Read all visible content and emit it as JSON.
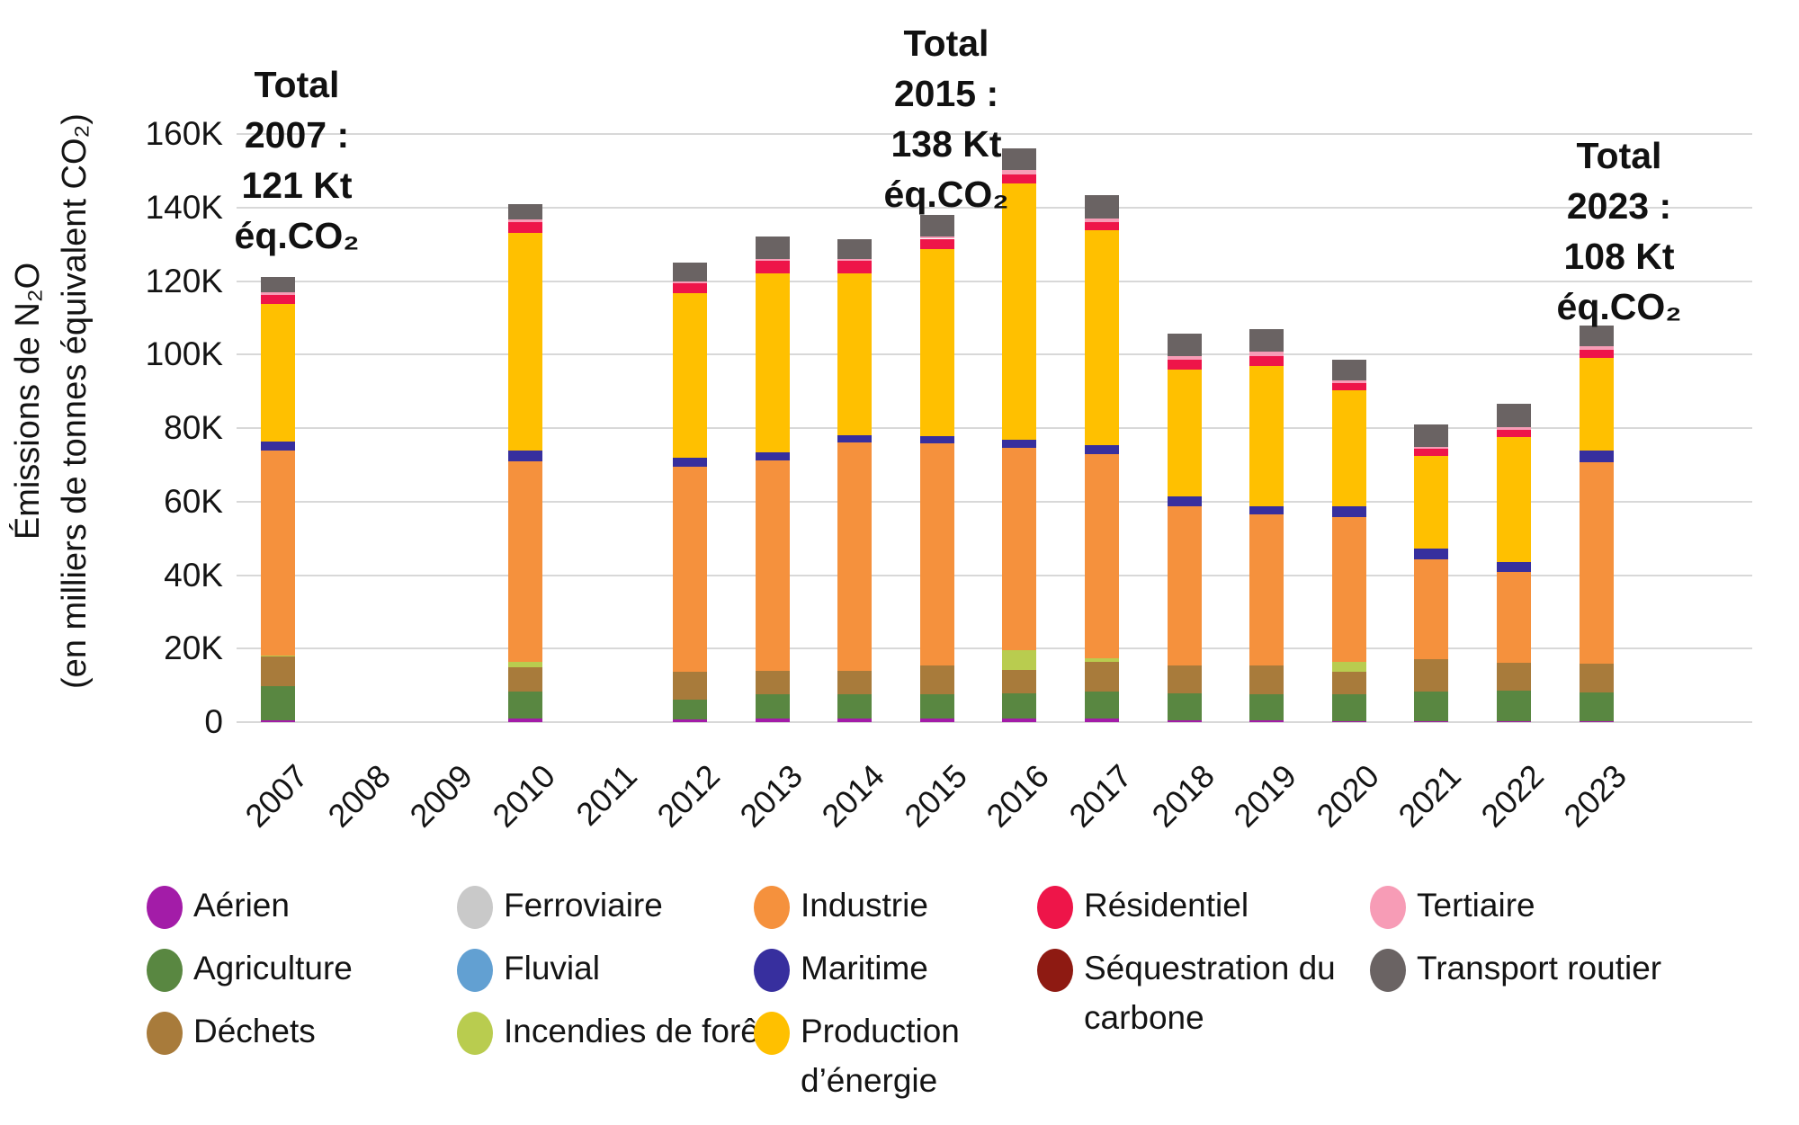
{
  "chart_data": {
    "type": "bar",
    "stacked": true,
    "grid": "horizontal",
    "y_axis_title_line1": "Émissions de N₂O",
    "y_axis_title_line2": "(en milliers de tonnes équivalent CO₂)",
    "y_unit": "K (milliers de tonnes éq. CO₂)",
    "ylim": [
      0,
      160
    ],
    "y_ticks": [
      {
        "value": 0,
        "label": "0"
      },
      {
        "value": 20,
        "label": "20K"
      },
      {
        "value": 40,
        "label": "40K"
      },
      {
        "value": 60,
        "label": "60K"
      },
      {
        "value": 80,
        "label": "80K"
      },
      {
        "value": 100,
        "label": "100K"
      },
      {
        "value": 120,
        "label": "120K"
      },
      {
        "value": 140,
        "label": "140K"
      },
      {
        "value": 160,
        "label": "160K"
      }
    ],
    "categories": [
      "2007",
      "2008",
      "2009",
      "2010",
      "2011",
      "2012",
      "2013",
      "2014",
      "2015",
      "2016",
      "2017",
      "2018",
      "2019",
      "2020",
      "2021",
      "2022",
      "2023"
    ],
    "series": [
      {
        "name": "Aérien",
        "color": "#A31CA8",
        "values": [
          0.5,
          null,
          null,
          1.0,
          null,
          0.8,
          0.9,
          0.9,
          1.1,
          0.9,
          0.9,
          0.5,
          0.6,
          0.3,
          0.3,
          0.2,
          0.2
        ]
      },
      {
        "name": "Agriculture",
        "color": "#598741",
        "values": [
          9.3,
          null,
          null,
          7.2,
          null,
          5.4,
          6.8,
          6.8,
          6.6,
          7.0,
          7.3,
          7.4,
          7.1,
          7.4,
          8.1,
          8.3,
          7.9
        ]
      },
      {
        "name": "Déchets",
        "color": "#A87B3B",
        "values": [
          8.0,
          null,
          null,
          6.7,
          null,
          7.6,
          6.3,
          6.3,
          7.6,
          6.3,
          8.3,
          7.4,
          7.6,
          5.9,
          8.8,
          7.6,
          7.7
        ]
      },
      {
        "name": "Ferroviaire",
        "color": "#C9C9C9",
        "values": [
          0,
          null,
          null,
          0,
          null,
          0,
          0,
          0,
          0,
          0,
          0,
          0,
          0,
          0,
          0,
          0,
          0
        ]
      },
      {
        "name": "Fluvial",
        "color": "#62A0D2",
        "values": [
          0,
          null,
          null,
          0,
          null,
          0,
          0,
          0,
          0,
          0,
          0,
          0,
          0,
          0,
          0,
          0,
          0
        ]
      },
      {
        "name": "Incendies de forêt",
        "color": "#B9CC4F",
        "values": [
          0.2,
          null,
          null,
          1.5,
          null,
          0,
          0,
          0,
          0,
          5.3,
          0.8,
          0,
          0,
          2.9,
          0,
          0,
          0
        ]
      },
      {
        "name": "Industrie",
        "color": "#F5913D",
        "values": [
          56.0,
          null,
          null,
          54.6,
          null,
          55.6,
          57.2,
          62.1,
          60.5,
          55.2,
          55.5,
          43.5,
          41.1,
          39.2,
          27.1,
          24.7,
          54.9
        ]
      },
      {
        "name": "Maritime",
        "color": "#372F9E",
        "values": [
          2.3,
          null,
          null,
          3.0,
          null,
          2.6,
          2.2,
          2.0,
          2.0,
          2.0,
          2.6,
          2.6,
          2.4,
          2.9,
          2.9,
          2.8,
          3.1
        ]
      },
      {
        "name": "Production d’énergie",
        "color": "#FFC000",
        "values": [
          37.4,
          null,
          null,
          59.0,
          null,
          44.7,
          48.8,
          44.1,
          50.8,
          69.8,
          58.4,
          34.5,
          38.2,
          31.6,
          25.1,
          34.0,
          25.2
        ]
      },
      {
        "name": "Résidentiel",
        "color": "#EE1549",
        "values": [
          2.5,
          null,
          null,
          3.0,
          null,
          2.7,
          3.3,
          3.3,
          2.9,
          2.5,
          2.2,
          2.7,
          2.5,
          2.0,
          2.0,
          1.9,
          2.2
        ]
      },
      {
        "name": "Séquestration du carbone",
        "color": "#8E1A12",
        "values": [
          0,
          null,
          null,
          0,
          null,
          0,
          0,
          0,
          0,
          0,
          0,
          0,
          0,
          0,
          0,
          0,
          0
        ]
      },
      {
        "name": "Tertiaire",
        "color": "#F79CB6",
        "values": [
          0.7,
          null,
          null,
          0.8,
          null,
          0.6,
          0.5,
          0.5,
          0.5,
          1.1,
          1.0,
          0.9,
          1.3,
          0.8,
          0.6,
          0.8,
          1.1
        ]
      },
      {
        "name": "Transport routier",
        "color": "#6A6363",
        "values": [
          4.1,
          null,
          null,
          4.2,
          null,
          5.0,
          6.0,
          5.5,
          6.0,
          5.9,
          6.3,
          6.3,
          6.0,
          5.7,
          6.0,
          6.4,
          5.7
        ]
      }
    ],
    "totals_annotated": [
      {
        "year": "2007",
        "lines": [
          "Total",
          "2007 :",
          "121 Kt",
          "éq.CO₂"
        ]
      },
      {
        "year": "2015",
        "lines": [
          "Total",
          "2015 :",
          "138 Kt",
          "éq.CO₂"
        ]
      },
      {
        "year": "2023",
        "lines": [
          "Total",
          "2023 :",
          "108 Kt",
          "éq.CO₂"
        ]
      }
    ],
    "legend_position": "bottom"
  }
}
